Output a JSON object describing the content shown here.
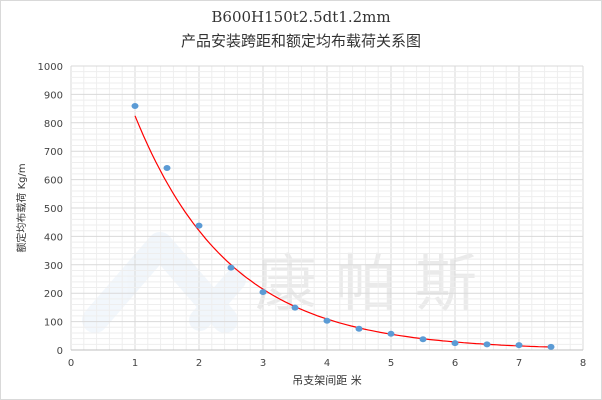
{
  "chart_data": {
    "type": "scatter",
    "title": "B600H150t2.5dt1.2mm",
    "subtitle": "产品安装跨距和额定均布载荷关系图",
    "xlabel": "吊支架间距 米",
    "ylabel": "额定均布载荷 Kg/m",
    "xlim": [
      0,
      8
    ],
    "ylim": [
      0,
      1000
    ],
    "xticks": [
      0,
      1,
      2,
      3,
      4,
      5,
      6,
      7,
      8
    ],
    "yticks": [
      0,
      100,
      200,
      300,
      400,
      500,
      600,
      700,
      800,
      900,
      1000
    ],
    "grid": {
      "major": true,
      "minor": true
    },
    "legend": "none",
    "trendline": "exponential",
    "x": [
      1,
      1.5,
      2,
      2.5,
      3,
      3.5,
      4,
      4.5,
      5,
      5.5,
      6,
      6.5,
      7,
      7.5
    ],
    "y": [
      859,
      641,
      438,
      290,
      204,
      149,
      103,
      75,
      57,
      38,
      24,
      20,
      17,
      11
    ],
    "colors": {
      "points": "#5b9bd5",
      "trendline": "#ff0000",
      "grid_major": "#d9d9d9",
      "grid_minor": "#eeeeee"
    }
  },
  "watermark": "康帕斯"
}
